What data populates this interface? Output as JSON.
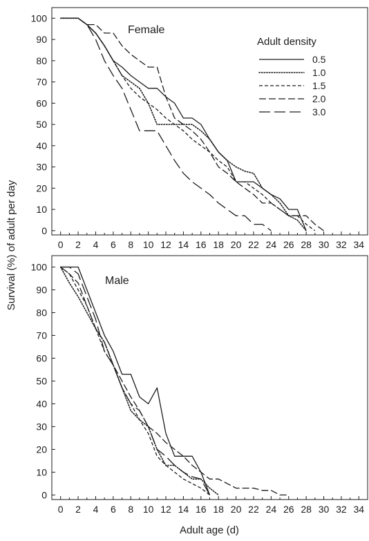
{
  "figure": {
    "ylabel": "Survival (%) of adult per day",
    "xlabel": "Adult age (d)"
  },
  "legend": {
    "title": "Adult density",
    "entries": [
      {
        "label": "0.5",
        "dash": "solid"
      },
      {
        "label": "1.0",
        "dash": "dotted"
      },
      {
        "label": "1.5",
        "dash": "dashed-short"
      },
      {
        "label": "2.0",
        "dash": "dashed-medium"
      },
      {
        "label": "3.0",
        "dash": "dashed-long"
      }
    ]
  },
  "chart_data": [
    {
      "type": "line",
      "title": "Female",
      "xlabel": "Adult age (d)",
      "ylabel": "Survival (%) of adult per day",
      "xlim": [
        -1,
        35
      ],
      "ylim": [
        -2,
        105
      ],
      "xticks": [
        0,
        2,
        4,
        6,
        8,
        10,
        12,
        14,
        16,
        18,
        20,
        22,
        24,
        26,
        28,
        30,
        32,
        34
      ],
      "yticks": [
        0,
        10,
        20,
        30,
        40,
        50,
        60,
        70,
        80,
        90,
        100
      ],
      "series": [
        {
          "name": "0.5",
          "dash": "solid",
          "x": [
            0,
            2,
            3,
            4,
            5,
            6,
            7,
            8,
            9,
            10,
            11,
            12,
            13,
            14,
            15,
            16,
            17,
            18,
            19,
            20,
            21,
            22,
            23,
            24,
            25,
            26,
            27,
            28
          ],
          "y": [
            100,
            100,
            97,
            93,
            87,
            80,
            77,
            73,
            70,
            67,
            67,
            63,
            60,
            53,
            53,
            50,
            43,
            37,
            33,
            23,
            23,
            23,
            20,
            17,
            15,
            10,
            10,
            0
          ]
        },
        {
          "name": "1.0",
          "dash": "dotted",
          "x": [
            0,
            2,
            3,
            4,
            5,
            6,
            7,
            8,
            9,
            10,
            11,
            12,
            13,
            14,
            15,
            16,
            17,
            18,
            19,
            20,
            21,
            22,
            23,
            24,
            25,
            26,
            27,
            28
          ],
          "y": [
            100,
            100,
            97,
            93,
            87,
            80,
            73,
            70,
            67,
            60,
            50,
            50,
            50,
            50,
            50,
            47,
            43,
            37,
            33,
            30,
            28,
            27,
            20,
            17,
            13,
            7,
            5,
            0
          ]
        },
        {
          "name": "1.5",
          "dash": "dashed-short",
          "x": [
            0,
            2,
            3,
            4,
            5,
            6,
            7,
            8,
            9,
            10,
            11,
            12,
            13,
            14,
            15,
            16,
            17,
            18,
            19,
            20,
            21,
            22,
            23,
            24,
            25,
            26,
            27,
            28,
            29
          ],
          "y": [
            100,
            100,
            97,
            93,
            87,
            80,
            73,
            67,
            63,
            60,
            57,
            53,
            50,
            47,
            43,
            40,
            37,
            33,
            30,
            23,
            23,
            20,
            17,
            13,
            10,
            7,
            7,
            3,
            0
          ]
        },
        {
          "name": "2.0",
          "dash": "dashed-medium",
          "x": [
            0,
            2,
            3,
            4,
            5,
            6,
            7,
            8,
            9,
            10,
            11,
            12,
            13,
            14,
            15,
            16,
            17,
            18,
            19,
            20,
            21,
            22,
            23,
            24,
            25,
            26,
            27,
            28,
            29,
            30
          ],
          "y": [
            100,
            100,
            97,
            97,
            93,
            93,
            87,
            83,
            80,
            77,
            77,
            63,
            53,
            50,
            47,
            43,
            37,
            30,
            27,
            23,
            20,
            17,
            13,
            13,
            10,
            7,
            7,
            7,
            3,
            0
          ]
        },
        {
          "name": "3.0",
          "dash": "dashed-long",
          "x": [
            0,
            2,
            3,
            4,
            5,
            6,
            7,
            8,
            9,
            10,
            11,
            12,
            13,
            14,
            15,
            16,
            17,
            18,
            19,
            20,
            21,
            22,
            23,
            24
          ],
          "y": [
            100,
            100,
            97,
            90,
            80,
            73,
            67,
            57,
            47,
            47,
            47,
            40,
            33,
            27,
            23,
            20,
            17,
            13,
            10,
            7,
            7,
            3,
            3,
            0
          ]
        }
      ]
    },
    {
      "type": "line",
      "title": "Male",
      "xlabel": "Adult age (d)",
      "ylabel": "Survival (%) of adult per day",
      "xlim": [
        -1,
        35
      ],
      "ylim": [
        -2,
        105
      ],
      "xticks": [
        0,
        2,
        4,
        6,
        8,
        10,
        12,
        14,
        16,
        18,
        20,
        22,
        24,
        26,
        28,
        30,
        32,
        34
      ],
      "yticks": [
        0,
        10,
        20,
        30,
        40,
        50,
        60,
        70,
        80,
        90,
        100
      ],
      "series": [
        {
          "name": "0.5",
          "dash": "solid",
          "x": [
            0,
            1,
            2,
            3,
            4,
            5,
            6,
            7,
            8,
            9,
            10,
            11,
            12,
            13,
            14,
            15,
            16,
            17
          ],
          "y": [
            100,
            100,
            100,
            90,
            80,
            70,
            63,
            53,
            53,
            43,
            40,
            47,
            27,
            17,
            17,
            17,
            10,
            0
          ]
        },
        {
          "name": "1.0",
          "dash": "dotted",
          "x": [
            0,
            1,
            2,
            3,
            4,
            5,
            6,
            7,
            8,
            9,
            10,
            11,
            12,
            13,
            14,
            15,
            16,
            17,
            18
          ],
          "y": [
            100,
            93,
            87,
            80,
            73,
            67,
            57,
            47,
            37,
            33,
            30,
            20,
            13,
            13,
            10,
            7,
            7,
            3,
            0
          ]
        },
        {
          "name": "1.5",
          "dash": "dashed-short",
          "x": [
            0,
            1,
            2,
            3,
            4,
            5,
            6,
            7,
            8,
            9,
            10,
            11,
            12,
            13,
            14,
            15,
            16,
            17
          ],
          "y": [
            100,
            97,
            90,
            83,
            73,
            63,
            57,
            47,
            40,
            33,
            27,
            17,
            13,
            10,
            7,
            5,
            3,
            0
          ]
        },
        {
          "name": "2.0",
          "dash": "dashed-medium",
          "x": [
            0,
            1,
            2,
            3,
            4,
            5,
            6,
            7,
            8,
            9,
            10,
            11,
            12,
            13,
            14,
            15,
            16,
            17,
            18,
            19,
            20,
            21,
            22,
            23,
            24,
            25,
            26
          ],
          "y": [
            100,
            97,
            93,
            83,
            73,
            67,
            57,
            50,
            43,
            37,
            30,
            27,
            23,
            20,
            17,
            13,
            10,
            7,
            7,
            5,
            3,
            3,
            3,
            2,
            2,
            0,
            0
          ]
        },
        {
          "name": "3.0",
          "dash": "dashed-long",
          "x": [
            0,
            1,
            2,
            3,
            4,
            5,
            6,
            7,
            8,
            9,
            10,
            11,
            12,
            13,
            14,
            15,
            16,
            17
          ],
          "y": [
            100,
            100,
            97,
            87,
            77,
            63,
            57,
            47,
            40,
            37,
            30,
            20,
            17,
            13,
            10,
            8,
            7,
            0
          ]
        }
      ]
    }
  ]
}
